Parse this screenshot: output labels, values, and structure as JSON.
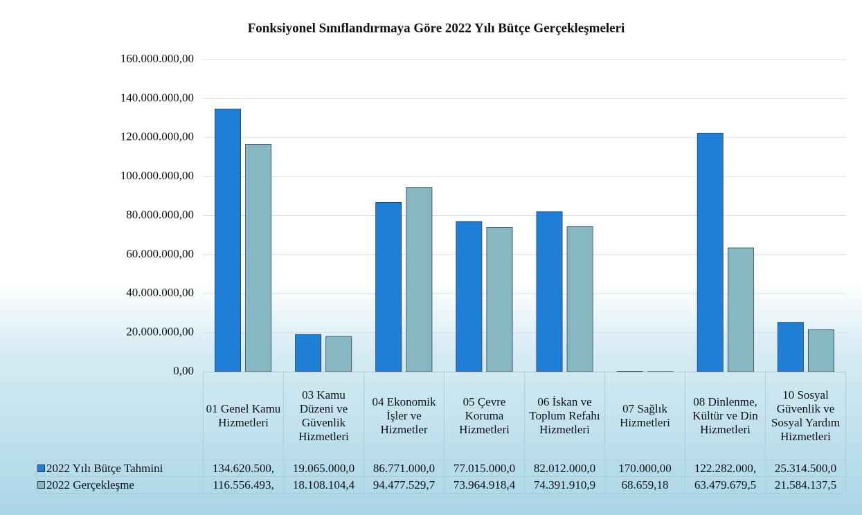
{
  "chart_data": {
    "type": "bar",
    "title": "Fonksiyonel Sınıflandırmaya Göre 2022 Yılı Bütçe Gerçekleşmeleri",
    "categories": [
      "01 Genel Kamu Hizmetleri",
      "03 Kamu Düzeni ve Güvenlik Hizmetleri",
      "04 Ekonomik İşler ve Hizmetler",
      "05 Çevre Koruma Hizmetleri",
      "06 İskan ve Toplum Refahı Hizmetleri",
      "07 Sağlık Hizmetleri",
      "08 Dinlenme, Kültür ve Din Hizmetleri",
      "10 Sosyal Güvenlik ve Sosyal Yardım Hizmetleri"
    ],
    "series": [
      {
        "name": "2022 Yılı Bütçe Tahmini",
        "color": "#1f7fd6",
        "values": [
          134620500,
          19065000,
          86771000,
          77015000,
          82012000,
          170000,
          122282000,
          25314500
        ],
        "value_labels": [
          "134.620.500,",
          "19.065.000,0",
          "86.771.000,0",
          "77.015.000,0",
          "82.012.000,0",
          "170.000,00",
          "122.282.000,",
          "25.314.500,0"
        ]
      },
      {
        "name": "2022 Gerçekleşme",
        "color": "#86b7c2",
        "values": [
          116556493,
          18108104.4,
          94477529.7,
          73964918.4,
          74391910.9,
          68659.18,
          63479679.5,
          21584137.5
        ],
        "value_labels": [
          "116.556.493,",
          "18.108.104,4",
          "94.477.529,7",
          "73.964.918,4",
          "74.391.910,9",
          "68.659,18",
          "63.479.679,5",
          "21.584.137,5"
        ]
      }
    ],
    "ylim": [
      0,
      160000000
    ],
    "yticks": [
      {
        "value": 0,
        "label": "0,00"
      },
      {
        "value": 20000000,
        "label": "20.000.000,00"
      },
      {
        "value": 40000000,
        "label": "40.000.000,00"
      },
      {
        "value": 60000000,
        "label": "60.000.000,00"
      },
      {
        "value": 80000000,
        "label": "80.000.000,00"
      },
      {
        "value": 100000000,
        "label": "100.000.000,00"
      },
      {
        "value": 120000000,
        "label": "120.000.000,00"
      },
      {
        "value": 140000000,
        "label": "140.000.000,00"
      },
      {
        "value": 160000000,
        "label": "160.000.000,00"
      }
    ],
    "grid": true
  }
}
